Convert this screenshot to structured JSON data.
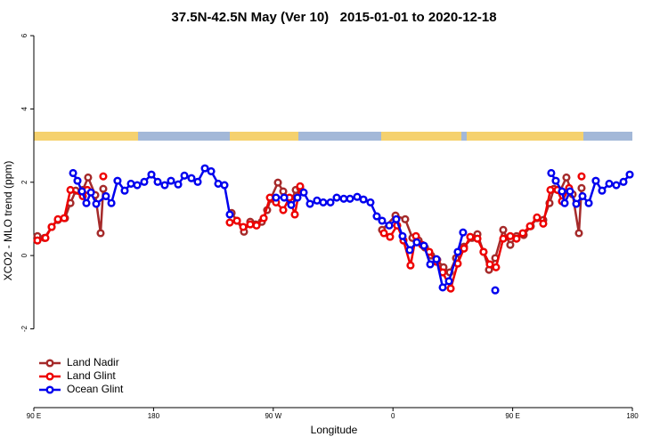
{
  "chart_data": {
    "type": "line",
    "title": "37.5N-42.5N May (Ver 10)   2015-01-01 to 2020-12-18",
    "x_label": "Longitude",
    "y_label": "XCO2 - MLO trend (ppm)",
    "xlim": [
      90,
      540
    ],
    "ylim": [
      -4.15,
      6.05
    ],
    "xticks": [
      {
        "value": 90,
        "label": "90 E"
      },
      180,
      {
        "value": 270,
        "label": "90 W"
      },
      {
        "value": 360,
        "label": "0"
      },
      {
        "value": 450,
        "label": "90 E"
      },
      {
        "value": 540,
        "label": "180"
      }
    ],
    "yticks": [
      -2,
      0,
      2,
      4,
      6
    ],
    "legend": "bottom-left",
    "series": [
      {
        "name": "Land Nadir",
        "color": "#a52a2a",
        "x": [
          92.7,
          98.0,
          103.4,
          108.1,
          113.4,
          117.5,
          121.5,
          126.8,
          130.8,
          136.2,
          140.2,
          142.2,
          null,
          238.7,
          242.7,
          248.0,
          252.7,
          256.7,
          261.4,
          265.4,
          268.1,
          273.5,
          277.5,
          283.5,
          286.9,
          290.2,
          null,
          351.8,
          361.9,
          369.2,
          374.6,
          379.3,
          384.0,
          388.7,
          393.3,
          398.0,
          402.7,
          407.4,
          413.4,
          419.4,
          423.5,
          428.1,
          432.2,
          436.9,
          442.9,
          448.2,
          452.9,
          458.3,
          463.6,
          468.3,
          473.0,
          477.7,
          481.0,
          485.8,
          490.4,
          495.1,
          499.8,
          501.8
        ],
        "values": [
          0.53,
          0.48,
          0.78,
          0.97,
          1.02,
          1.43,
          1.77,
          1.79,
          2.13,
          1.65,
          0.61,
          1.82,
          null,
          1.16,
          0.95,
          0.65,
          0.92,
          0.85,
          0.92,
          1.24,
          1.55,
          1.99,
          1.75,
          1.48,
          1.79,
          1.84,
          null,
          0.7,
          1.09,
          0.99,
          0.48,
          0.41,
          0.22,
          0.0,
          -0.12,
          -0.32,
          -0.46,
          -0.07,
          0.24,
          0.48,
          0.58,
          0.1,
          -0.39,
          -0.07,
          0.7,
          0.29,
          0.53,
          0.56,
          0.8,
          1.02,
          0.97,
          1.43,
          1.82,
          1.77,
          2.13,
          1.67,
          0.61,
          1.84
        ]
      },
      {
        "name": "Land Glint",
        "color": "#ee0000",
        "x": [
          92.7,
          98.7,
          103.4,
          108.1,
          112.8,
          117.5,
          126.8,
          130.2,
          null,
          142.2,
          null,
          237.3,
          242.7,
          247.4,
          252.7,
          257.4,
          262.8,
          267.5,
          272.1,
          277.5,
          282.2,
          286.2,
          290.2,
          null,
          353.2,
          357.8,
          363.2,
          367.9,
          373.2,
          377.3,
          382.0,
          387.3,
          392.7,
          397.4,
          403.4,
          408.7,
          413.4,
          418.1,
          423.5,
          428.1,
          432.8,
          437.5,
          442.9,
          448.2,
          452.9,
          457.6,
          463.0,
          468.3,
          473.0,
          478.4,
          483.7,
          487.1,
          492.4,
          null,
          501.8
        ],
        "values": [
          0.41,
          0.48,
          0.78,
          0.99,
          1.02,
          1.79,
          1.62,
          1.79,
          null,
          2.16,
          null,
          0.9,
          0.95,
          0.78,
          0.85,
          0.82,
          1.02,
          1.58,
          1.45,
          1.24,
          1.58,
          1.12,
          1.89,
          null,
          0.61,
          0.51,
          0.82,
          0.41,
          -0.27,
          0.53,
          0.29,
          0.1,
          -0.17,
          -0.46,
          -0.9,
          -0.22,
          0.19,
          0.51,
          0.46,
          0.1,
          -0.24,
          -0.32,
          0.46,
          0.53,
          0.46,
          0.61,
          0.8,
          1.04,
          0.87,
          1.79,
          1.79,
          1.48,
          1.84,
          null,
          2.16
        ]
      },
      {
        "name": "Ocean Glint",
        "color": "#0000ee",
        "x": [
          119.5,
          122.8,
          126.2,
          129.5,
          132.9,
          136.9,
          144.2,
          148.3,
          152.9,
          158.3,
          163.0,
          167.7,
          173.0,
          178.4,
          183.1,
          188.4,
          193.1,
          198.5,
          203.2,
          208.5,
          213.2,
          218.6,
          223.3,
          228.6,
          233.3,
          237.3,
          null,
          272.1,
          278.2,
          283.5,
          288.2,
          292.9,
          297.6,
          302.9,
          307.6,
          313.0,
          317.7,
          323.0,
          327.7,
          333.1,
          337.8,
          343.1,
          347.8,
          351.8,
          357.2,
          362.5,
          367.2,
          372.6,
          377.9,
          383.3,
          388.0,
          392.7,
          397.4,
          402.1,
          408.7,
          412.7,
          null,
          436.9,
          null,
          479.0,
          482.4,
          487.1,
          489.1,
          493.1,
          497.8,
          502.5,
          507.2,
          512.5,
          517.2,
          522.6,
          527.9,
          533.3,
          538.0
        ],
        "values": [
          2.25,
          2.04,
          1.75,
          1.43,
          1.72,
          1.41,
          1.62,
          1.43,
          2.04,
          1.77,
          1.96,
          1.92,
          2.01,
          2.21,
          2.01,
          1.92,
          2.04,
          1.94,
          2.18,
          2.11,
          2.01,
          2.38,
          2.3,
          1.96,
          1.92,
          1.12,
          null,
          1.58,
          1.58,
          1.38,
          1.58,
          1.72,
          1.41,
          1.5,
          1.45,
          1.45,
          1.58,
          1.55,
          1.55,
          1.6,
          1.53,
          1.45,
          1.07,
          0.95,
          0.82,
          0.99,
          0.53,
          0.15,
          0.36,
          0.27,
          -0.24,
          -0.1,
          -0.87,
          -0.7,
          0.1,
          0.63,
          null,
          -0.95,
          null,
          2.25,
          2.04,
          1.75,
          1.43,
          1.75,
          1.41,
          1.62,
          1.43,
          2.04,
          1.77,
          1.96,
          1.92,
          2.01,
          2.21
        ]
      }
    ]
  }
}
